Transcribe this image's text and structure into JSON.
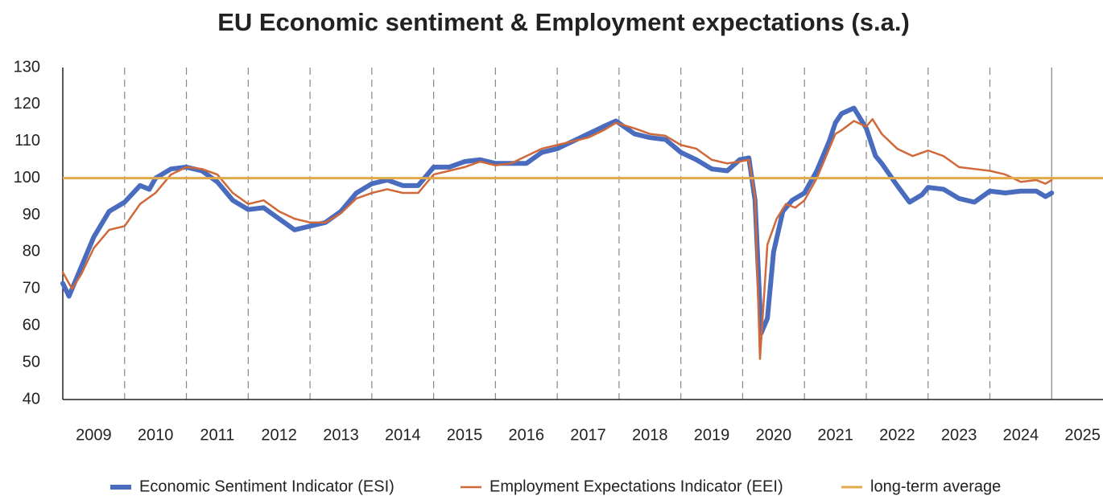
{
  "chart_data": {
    "type": "line",
    "title": "EU Economic sentiment & Employment expectations (s.a.)",
    "xlim": [
      2009,
      2025.83
    ],
    "xticks": [
      {
        "value": 2009.5,
        "label": "2009"
      },
      {
        "value": 2010.5,
        "label": "2010"
      },
      {
        "value": 2011.5,
        "label": "2011"
      },
      {
        "value": 2012.5,
        "label": "2012"
      },
      {
        "value": 2013.5,
        "label": "2013"
      },
      {
        "value": 2014.5,
        "label": "2014"
      },
      {
        "value": 2015.5,
        "label": "2015"
      },
      {
        "value": 2016.5,
        "label": "2016"
      },
      {
        "value": 2017.5,
        "label": "2017"
      },
      {
        "value": 2018.5,
        "label": "2018"
      },
      {
        "value": 2019.5,
        "label": "2019"
      },
      {
        "value": 2020.5,
        "label": "2020"
      },
      {
        "value": 2021.5,
        "label": "2021"
      },
      {
        "value": 2022.5,
        "label": "2022"
      },
      {
        "value": 2023.5,
        "label": "2023"
      },
      {
        "value": 2024.5,
        "label": "2024"
      },
      {
        "value": 2025.5,
        "label": "2025"
      }
    ],
    "xgrid": [
      2010,
      2011,
      2012,
      2013,
      2014,
      2015,
      2016,
      2017,
      2018,
      2019,
      2020,
      2021,
      2022,
      2023,
      2024
    ],
    "xgrid_solid": [
      2025
    ],
    "ylim": [
      40,
      130
    ],
    "yticks": [
      40,
      50,
      60,
      70,
      80,
      90,
      100,
      110,
      120,
      130
    ],
    "series": [
      {
        "name": "Economic Sentiment Indicator (ESI)",
        "color": "#4a6cbf",
        "width": 6,
        "x": [
          2009.0,
          2009.1,
          2009.25,
          2009.5,
          2009.75,
          2010.0,
          2010.25,
          2010.4,
          2010.5,
          2010.75,
          2011.0,
          2011.25,
          2011.5,
          2011.75,
          2012.0,
          2012.25,
          2012.5,
          2012.75,
          2013.0,
          2013.25,
          2013.5,
          2013.75,
          2014.0,
          2014.25,
          2014.5,
          2014.75,
          2015.0,
          2015.25,
          2015.5,
          2015.75,
          2016.0,
          2016.25,
          2016.5,
          2016.75,
          2017.0,
          2017.25,
          2017.5,
          2017.75,
          2017.95,
          2018.25,
          2018.5,
          2018.75,
          2019.0,
          2019.25,
          2019.5,
          2019.75,
          2019.95,
          2020.1,
          2020.2,
          2020.3,
          2020.4,
          2020.5,
          2020.65,
          2020.8,
          2021.0,
          2021.2,
          2021.4,
          2021.5,
          2021.6,
          2021.8,
          2022.0,
          2022.15,
          2022.25,
          2022.5,
          2022.7,
          2022.9,
          2023.0,
          2023.25,
          2023.5,
          2023.75,
          2024.0,
          2024.25,
          2024.5,
          2024.75,
          2024.9,
          2025.0
        ],
        "values": [
          71.5,
          68,
          74,
          84,
          91,
          93.5,
          98,
          97,
          100,
          102.5,
          103,
          102,
          99,
          94,
          91.5,
          92,
          89,
          86,
          87,
          88,
          91,
          96,
          98.5,
          99.5,
          98,
          98,
          103,
          103,
          104.5,
          105,
          104,
          104,
          104,
          107,
          108,
          110,
          112,
          114,
          115.5,
          112,
          111,
          110.5,
          107,
          105,
          102.5,
          102,
          105,
          105.5,
          94,
          58,
          62,
          80,
          91,
          94,
          96,
          102,
          110,
          115,
          117.5,
          119,
          113.5,
          106,
          104,
          98,
          93.5,
          95.5,
          97.5,
          97,
          94.5,
          93.5,
          96.5,
          96,
          96.5,
          96.5,
          95,
          96
        ]
      },
      {
        "name": "Employment Expectations Indicator (EEI)",
        "color": "#d0683a",
        "width": 2.5,
        "x": [
          2009.0,
          2009.15,
          2009.3,
          2009.5,
          2009.75,
          2010.0,
          2010.25,
          2010.5,
          2010.75,
          2011.0,
          2011.25,
          2011.5,
          2011.75,
          2012.0,
          2012.25,
          2012.5,
          2012.75,
          2013.0,
          2013.25,
          2013.5,
          2013.75,
          2014.0,
          2014.25,
          2014.5,
          2014.75,
          2015.0,
          2015.25,
          2015.5,
          2015.75,
          2016.0,
          2016.25,
          2016.5,
          2016.75,
          2017.0,
          2017.25,
          2017.5,
          2017.75,
          2017.95,
          2018.25,
          2018.5,
          2018.75,
          2019.0,
          2019.25,
          2019.5,
          2019.75,
          2019.95,
          2020.1,
          2020.2,
          2020.28,
          2020.4,
          2020.55,
          2020.7,
          2020.85,
          2021.0,
          2021.2,
          2021.4,
          2021.5,
          2021.6,
          2021.8,
          2022.0,
          2022.1,
          2022.25,
          2022.5,
          2022.75,
          2023.0,
          2023.25,
          2023.5,
          2023.75,
          2024.0,
          2024.25,
          2024.5,
          2024.75,
          2024.9,
          2025.0
        ],
        "values": [
          74.5,
          70,
          74,
          81,
          86,
          87,
          93,
          96,
          101,
          103,
          102.5,
          101,
          96,
          93,
          94,
          91,
          89,
          88,
          88,
          90.5,
          94.5,
          96,
          97,
          96,
          96,
          101,
          102,
          103,
          104.5,
          103.5,
          104,
          106,
          108,
          109,
          110,
          111,
          113,
          115,
          113.5,
          112,
          111.5,
          109,
          108,
          105,
          104,
          104.5,
          105,
          95,
          51,
          82,
          89,
          93,
          92,
          94,
          100,
          108,
          112,
          113,
          115.5,
          114,
          116,
          112,
          108,
          106,
          107.5,
          106,
          103,
          102.5,
          102,
          101,
          99,
          99.5,
          98.5,
          99.5
        ]
      }
    ],
    "reference_line": {
      "name": "long-term average",
      "value": 100,
      "color": "#e1a94a"
    }
  }
}
